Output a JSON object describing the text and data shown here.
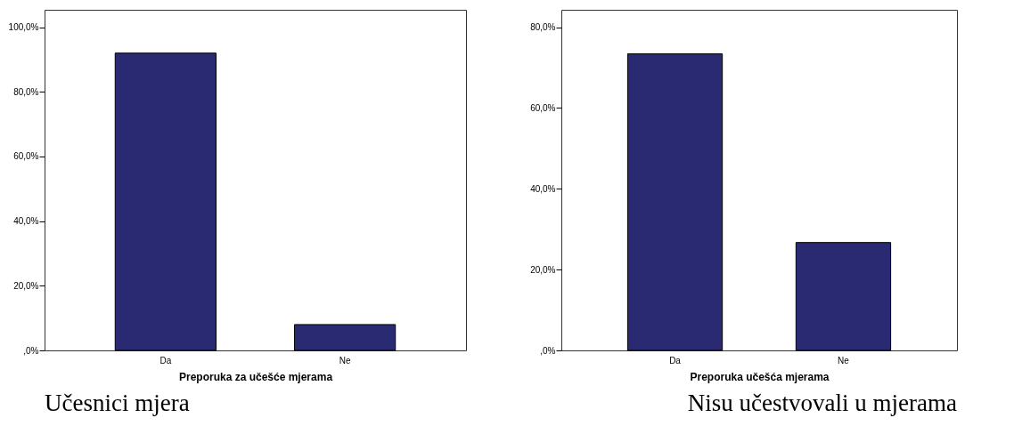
{
  "chart_data": [
    {
      "type": "bar",
      "title": "Učesnici mjera",
      "xlabel": "Preporuka za učešće mjerama",
      "categories": [
        "Da",
        "Ne"
      ],
      "values": [
        92,
        8
      ],
      "color": "#292a72",
      "ylim": [
        0,
        105.4
      ],
      "yticks": [
        {
          "value": 0,
          "label": ",0%"
        },
        {
          "value": 20,
          "label": "20,0%"
        },
        {
          "value": 40,
          "label": "40,0%"
        },
        {
          "value": 60,
          "label": "60,0%"
        },
        {
          "value": 80,
          "label": "80,0%"
        },
        {
          "value": 100,
          "label": "100,0%"
        }
      ]
    },
    {
      "type": "bar",
      "title": "Nisu učestvovali u mjerama",
      "xlabel": "Preporuka učešća mjerama",
      "categories": [
        "Da",
        "Ne"
      ],
      "values": [
        73.4,
        26.7
      ],
      "color": "#292a72",
      "ylim": [
        0,
        84.3
      ],
      "yticks": [
        {
          "value": 0,
          "label": ",0%"
        },
        {
          "value": 20,
          "label": "20,0%"
        },
        {
          "value": 40,
          "label": "40,0%"
        },
        {
          "value": 60,
          "label": "60,0%"
        },
        {
          "value": 80,
          "label": "80,0%"
        }
      ]
    }
  ]
}
